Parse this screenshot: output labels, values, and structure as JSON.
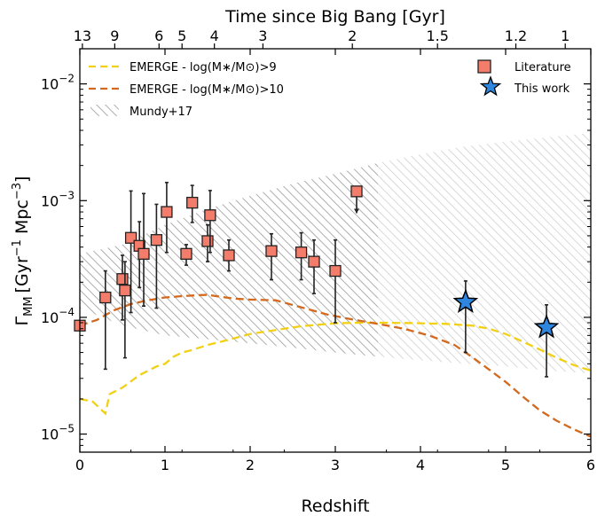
{
  "chart_data": {
    "type": "scatter",
    "xlabel": "Redshift",
    "ylabel_main": "Γ",
    "ylabel_sub": "MM",
    "ylabel_units": "[Gyr",
    "ylabel_exp1": "−1",
    "ylabel_mid": " Mpc",
    "ylabel_exp2": "−3",
    "ylabel_end": "]",
    "top_xlabel": "Time since Big Bang [Gyr]",
    "xlim": [
      0,
      6
    ],
    "ylim": [
      7e-06,
      0.02
    ],
    "yscale": "log",
    "x_ticks": [
      "0",
      "1",
      "2",
      "3",
      "4",
      "5",
      "6"
    ],
    "y_tick_exponents": [
      "−5",
      "−4",
      "−3",
      "−2"
    ],
    "top_ticks": [
      {
        "label": "13",
        "z": 0.03
      },
      {
        "label": "9",
        "z": 0.41
      },
      {
        "label": "6",
        "z": 0.93
      },
      {
        "label": "5",
        "z": 1.2
      },
      {
        "label": "4",
        "z": 1.58
      },
      {
        "label": "3",
        "z": 2.15
      },
      {
        "label": "2",
        "z": 3.2
      },
      {
        "label": "1.5",
        "z": 4.2
      },
      {
        "label": "1.2",
        "z": 5.12
      },
      {
        "label": "1",
        "z": 5.7
      }
    ],
    "legend": {
      "emerge9": "EMERGE - log(M∗/M⊙)>9",
      "emerge10": "EMERGE - log(M∗/M⊙)>10",
      "mundy": "Mundy+17",
      "literature": "Literature",
      "thiswork": "This work"
    },
    "colors": {
      "emerge9": "#f2d015",
      "emerge10": "#d2691e",
      "literature": "#f47c6a",
      "thiswork": "#2e86de",
      "band": "#9a9a9a"
    },
    "mundy_band": {
      "x": [
        0.0,
        0.5,
        1.0,
        1.5,
        2.0,
        2.5,
        3.0,
        3.5,
        4.0,
        4.5,
        5.0,
        5.5,
        6.0
      ],
      "upper": [
        0.00035,
        0.00042,
        0.00062,
        0.00085,
        0.0011,
        0.0014,
        0.0017,
        0.0021,
        0.0025,
        0.0029,
        0.0032,
        0.0035,
        0.0038
      ],
      "lower": [
        0.00012,
        8.5e-05,
        7e-05,
        6.5e-05,
        6e-05,
        5.5e-05,
        5e-05,
        4.6e-05,
        4.3e-05,
        4e-05,
        3.8e-05,
        3.5e-05,
        3.3e-05
      ]
    },
    "series": [
      {
        "name": "EMERGE - log(M∗/M⊙)>9",
        "x": [
          0.0,
          0.15,
          0.3,
          0.35,
          0.5,
          0.7,
          0.9,
          1.0,
          1.1,
          1.2,
          1.3,
          1.5,
          1.7,
          2.0,
          2.3,
          2.6,
          3.0,
          3.3,
          3.6,
          4.0,
          4.3,
          4.6,
          4.8,
          5.0,
          5.2,
          5.4,
          5.6,
          5.8,
          6.0
        ],
        "y": [
          2e-05,
          1.9e-05,
          1.5e-05,
          2.2e-05,
          2.5e-05,
          3.2e-05,
          3.8e-05,
          4e-05,
          4.6e-05,
          5e-05,
          5.2e-05,
          5.8e-05,
          6.3e-05,
          7.2e-05,
          7.8e-05,
          8.4e-05,
          8.9e-05,
          9e-05,
          9e-05,
          8.9e-05,
          8.8e-05,
          8.5e-05,
          8e-05,
          7.2e-05,
          6.2e-05,
          5.3e-05,
          4.5e-05,
          3.9e-05,
          3.5e-05
        ]
      },
      {
        "name": "EMERGE - log(M∗/M⊙)>10",
        "x": [
          0.0,
          0.2,
          0.4,
          0.6,
          0.8,
          1.0,
          1.2,
          1.4,
          1.5,
          1.6,
          1.8,
          2.0,
          2.3,
          2.6,
          2.9,
          3.2,
          3.5,
          3.8,
          4.1,
          4.4,
          4.6,
          4.8,
          5.0,
          5.2,
          5.4,
          5.6,
          5.8,
          6.0
        ],
        "y": [
          8.5e-05,
          9.5e-05,
          0.000115,
          0.00013,
          0.00014,
          0.000148,
          0.000152,
          0.000155,
          0.000156,
          0.000152,
          0.000145,
          0.000142,
          0.00014,
          0.000122,
          0.000106,
          9.6e-05,
          8.8e-05,
          8e-05,
          7e-05,
          5.8e-05,
          4.6e-05,
          3.6e-05,
          2.8e-05,
          2.1e-05,
          1.6e-05,
          1.3e-05,
          1.1e-05,
          9.5e-06
        ]
      },
      {
        "name": "Literature",
        "points": [
          {
            "x": 0.0,
            "y": 8.5e-05,
            "lo": 8.5e-05,
            "hi": 8.5e-05
          },
          {
            "x": 0.3,
            "y": 0.000148,
            "lo": 3.6e-05,
            "hi": 0.00025
          },
          {
            "x": 0.5,
            "y": 0.000213,
            "lo": 9.5e-05,
            "hi": 0.00034
          },
          {
            "x": 0.53,
            "y": 0.00017,
            "lo": 4.5e-05,
            "hi": 0.0003
          },
          {
            "x": 0.6,
            "y": 0.00048,
            "lo": 0.00011,
            "hi": 0.00121
          },
          {
            "x": 0.7,
            "y": 0.00041,
            "lo": 0.00018,
            "hi": 0.00066
          },
          {
            "x": 0.75,
            "y": 0.00035,
            "lo": 0.000125,
            "hi": 0.00115
          },
          {
            "x": 0.9,
            "y": 0.00046,
            "lo": 0.00012,
            "hi": 0.00093
          },
          {
            "x": 1.02,
            "y": 0.0008,
            "lo": 0.00036,
            "hi": 0.00143
          },
          {
            "x": 1.25,
            "y": 0.00035,
            "lo": 0.00028,
            "hi": 0.00042
          },
          {
            "x": 1.32,
            "y": 0.00096,
            "lo": 0.00065,
            "hi": 0.00135
          },
          {
            "x": 1.5,
            "y": 0.00045,
            "lo": 0.0003,
            "hi": 0.00062
          },
          {
            "x": 1.53,
            "y": 0.00075,
            "lo": 0.00036,
            "hi": 0.00122
          },
          {
            "x": 1.75,
            "y": 0.00034,
            "lo": 0.00025,
            "hi": 0.00046
          },
          {
            "x": 2.25,
            "y": 0.00037,
            "lo": 0.00021,
            "hi": 0.00052
          },
          {
            "x": 2.6,
            "y": 0.00036,
            "lo": 0.00021,
            "hi": 0.00053
          },
          {
            "x": 2.75,
            "y": 0.0003,
            "lo": 0.00016,
            "hi": 0.00046
          },
          {
            "x": 3.0,
            "y": 0.00025,
            "lo": 9e-05,
            "hi": 0.00046
          },
          {
            "x": 3.25,
            "y": 0.0012,
            "lo": 0.00078,
            "hi": 0.0012,
            "upper_limit": true
          }
        ]
      },
      {
        "name": "This work",
        "points": [
          {
            "x": 4.53,
            "y": 0.000135,
            "lo": 5e-05,
            "hi": 0.000205
          },
          {
            "x": 5.48,
            "y": 8.2e-05,
            "lo": 3.1e-05,
            "hi": 0.000128
          }
        ]
      }
    ]
  }
}
